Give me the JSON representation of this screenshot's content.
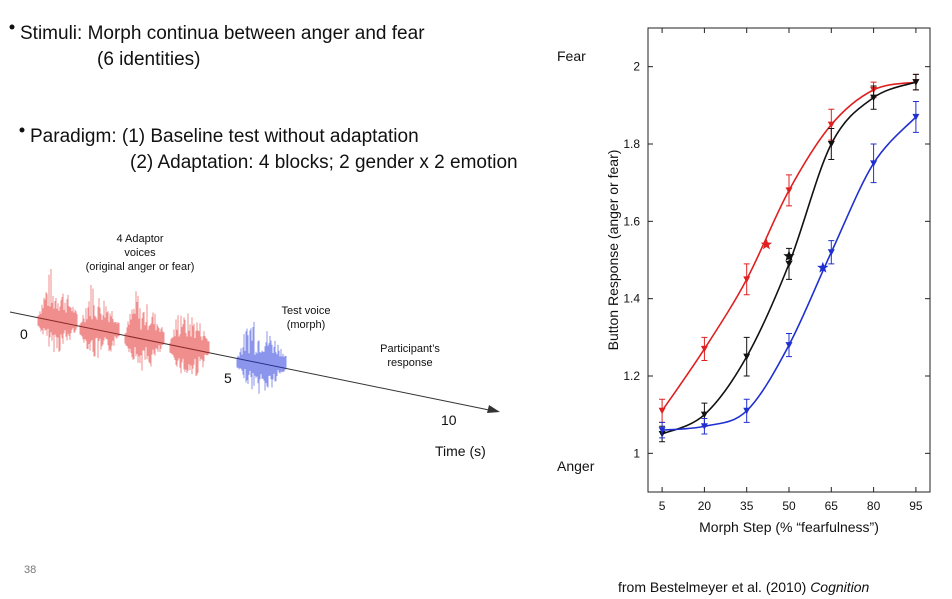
{
  "stimuli": {
    "line1": "Stimuli: Morph continua between anger and fear",
    "line2": "(6 identities)"
  },
  "paradigm": {
    "line1": "Paradigm: (1) Baseline test without adaptation",
    "line2": "(2) Adaptation: 4 blocks; 2 gender x 2 emotion"
  },
  "timeline": {
    "ticks": [
      "0",
      "5",
      "10"
    ],
    "axis_label": "Time (s)",
    "adaptor_label": [
      "4 Adaptor",
      "voices",
      "(original anger or fear)"
    ],
    "test_label": [
      "Test voice",
      "(morph)"
    ],
    "response_label": [
      "Participant’s",
      "response"
    ]
  },
  "slide_number": "38",
  "citation": {
    "text": "from Bestelmeyer et al. (2010)",
    "journal": "Cognition"
  },
  "chart_data": {
    "type": "line",
    "ylabel": "Button Response (anger or fear)",
    "xlabel": "Morph Step (% “fearfulness”)",
    "top_label": "Fear",
    "bottom_label": "Anger",
    "x": [
      5,
      20,
      35,
      50,
      65,
      80,
      95
    ],
    "xlim": [
      0,
      100
    ],
    "xticks": [
      5,
      20,
      35,
      50,
      65,
      80,
      95
    ],
    "ylim": [
      0.9,
      2.1
    ],
    "yticks": [
      1,
      1.2,
      1.4,
      1.6,
      1.8,
      2
    ],
    "series": [
      {
        "color": "#e02020",
        "values": [
          1.11,
          1.27,
          1.45,
          1.68,
          1.85,
          1.94,
          1.96
        ],
        "errors": [
          0.03,
          0.03,
          0.04,
          0.04,
          0.04,
          0.02,
          0.02
        ],
        "pse_x": 42,
        "pse_y": 1.54
      },
      {
        "color": "#111111",
        "values": [
          1.05,
          1.1,
          1.25,
          1.49,
          1.8,
          1.92,
          1.96
        ],
        "errors": [
          0.02,
          0.03,
          0.05,
          0.04,
          0.04,
          0.03,
          0.02
        ],
        "pse_x": 50,
        "pse_y": 1.51
      },
      {
        "color": "#2030d0",
        "values": [
          1.06,
          1.07,
          1.11,
          1.28,
          1.52,
          1.75,
          1.87
        ],
        "errors": [
          0.02,
          0.02,
          0.03,
          0.03,
          0.03,
          0.05,
          0.04
        ],
        "pse_x": 62,
        "pse_y": 1.48
      }
    ]
  }
}
